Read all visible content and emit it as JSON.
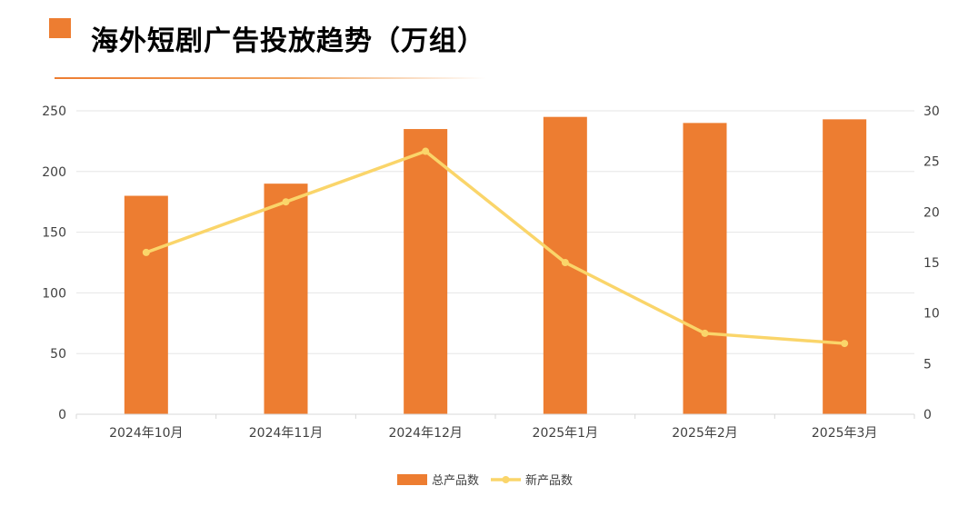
{
  "page": {
    "title": "海外短剧广告投放趋势（万组）"
  },
  "chart_data": {
    "type": "bar",
    "title": "海外短剧广告投放趋势（万组）",
    "categories": [
      "2024年10月",
      "2024年11月",
      "2024年12月",
      "2025年1月",
      "2025年2月",
      "2025年3月"
    ],
    "series": [
      {
        "name": "总产品数",
        "type": "bar",
        "axis": "left",
        "color": "#ED7D31",
        "values": [
          180,
          190,
          235,
          245,
          240,
          243
        ]
      },
      {
        "name": "新产品数",
        "type": "line",
        "axis": "right",
        "color": "#FAD56A",
        "values": [
          16,
          21,
          26,
          15,
          8,
          7
        ]
      }
    ],
    "y_left": {
      "min": 0,
      "max": 250,
      "ticks": [
        0,
        50,
        100,
        150,
        200,
        250
      ]
    },
    "y_right": {
      "min": 0,
      "max": 30,
      "ticks": [
        0,
        5,
        10,
        15,
        20,
        25,
        30
      ]
    },
    "grid": true,
    "legend_position": "bottom"
  }
}
